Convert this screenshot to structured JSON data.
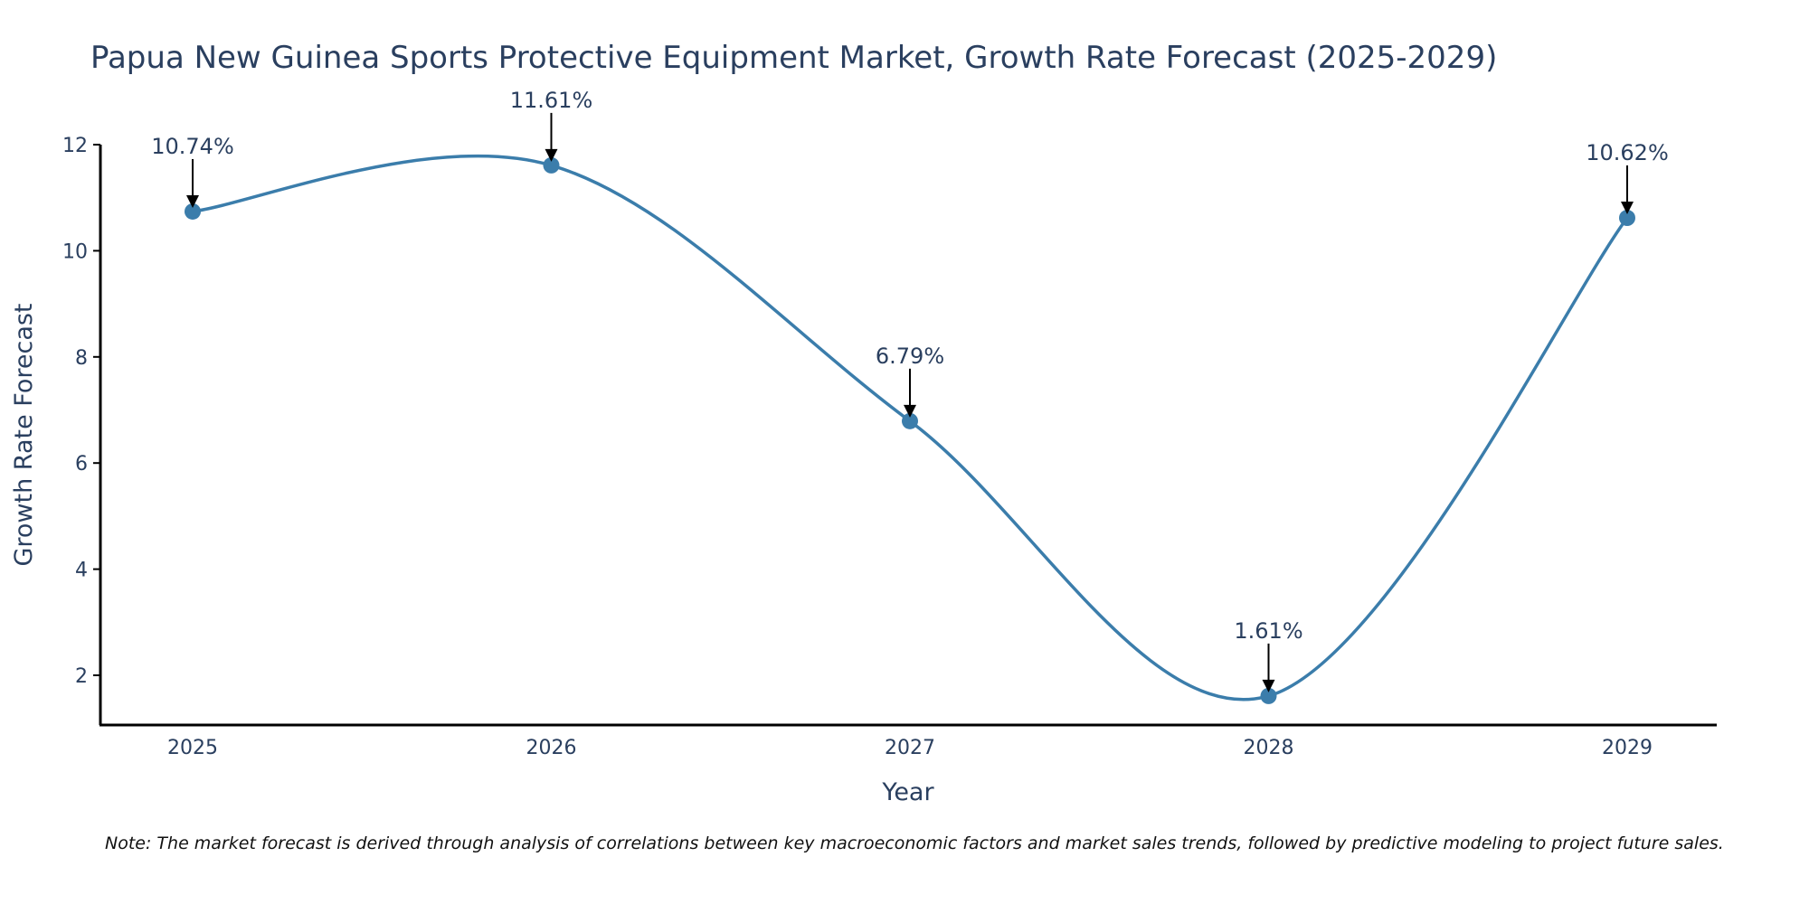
{
  "chart_data": {
    "type": "line",
    "title": "Papua New Guinea Sports Protective Equipment Market, Growth Rate Forecast (2025-2029)",
    "xlabel": "Year",
    "ylabel": "Growth Rate Forecast",
    "categories": [
      "2025",
      "2026",
      "2027",
      "2028",
      "2029"
    ],
    "values": [
      10.74,
      11.61,
      6.79,
      1.61,
      10.62
    ],
    "data_labels": [
      "10.74%",
      "11.61%",
      "6.79%",
      "1.61%",
      "10.62%"
    ],
    "yticks": [
      2,
      4,
      6,
      8,
      10,
      12
    ],
    "ylim": [
      1.1,
      12.1
    ],
    "grid": false,
    "line_color": "#3b7dab",
    "note": "Note: The market forecast is derived through analysis of correlations between key macroeconomic factors and market sales trends, followed by predictive modeling to project future sales."
  }
}
